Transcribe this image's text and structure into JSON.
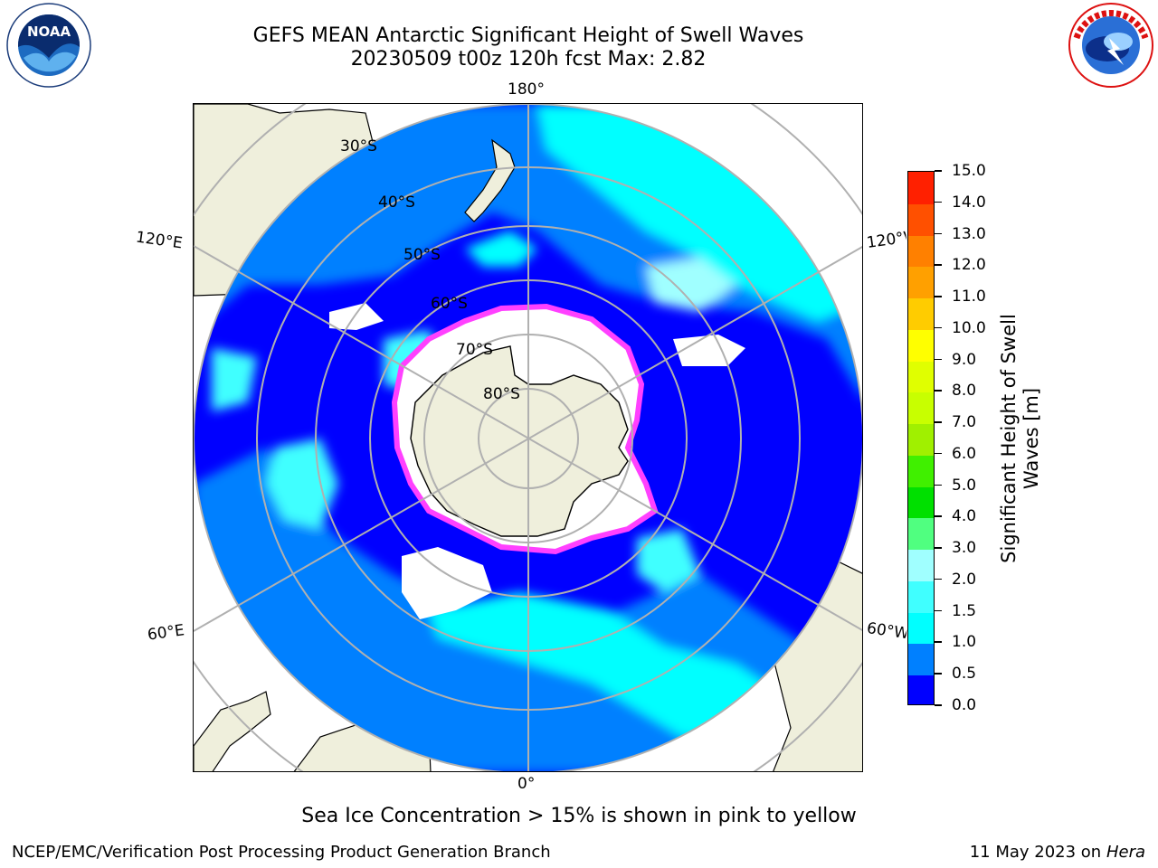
{
  "header": {
    "title": "GEFS MEAN Antarctic Significant Height of Swell Waves",
    "subtitle": "20230509 t00z 120h fcst   Max: 2.82"
  },
  "map": {
    "longitude_labels": {
      "top": "180°",
      "bottom": "0°",
      "upper_left": "120°E",
      "lower_left": "60°E",
      "upper_right": "120°W",
      "lower_right": "60°W"
    },
    "latitude_labels": [
      "30°S",
      "40°S",
      "50°S",
      "60°S",
      "70°S",
      "80°S"
    ]
  },
  "colorbar": {
    "title": "Significant Height of Swell Waves [m]",
    "ticks": [
      "0.0",
      "0.5",
      "1.0",
      "1.5",
      "2.0",
      "3.0",
      "4.0",
      "5.0",
      "6.0",
      "7.0",
      "8.0",
      "9.0",
      "10.0",
      "11.0",
      "12.0",
      "13.0",
      "14.0",
      "15.0"
    ],
    "colors": [
      "#0000ff",
      "#0080ff",
      "#00ffff",
      "#40ffff",
      "#a0ffff",
      "#50ff80",
      "#00e000",
      "#40f000",
      "#a0f000",
      "#c8ff00",
      "#e0ff00",
      "#ffff00",
      "#ffcc00",
      "#ffa000",
      "#ff8000",
      "#ff5000",
      "#ff2000"
    ]
  },
  "footer": {
    "note": "Sea Ice Concentration > 15% is shown in pink to yellow",
    "credit": "NCEP/EMC/Verification Post Processing Product Generation Branch",
    "date_prefix": "11 May 2023 on",
    "machine": "Hera"
  },
  "logos": {
    "left": "noaa-logo",
    "right": "national-weather-service-logo"
  }
}
